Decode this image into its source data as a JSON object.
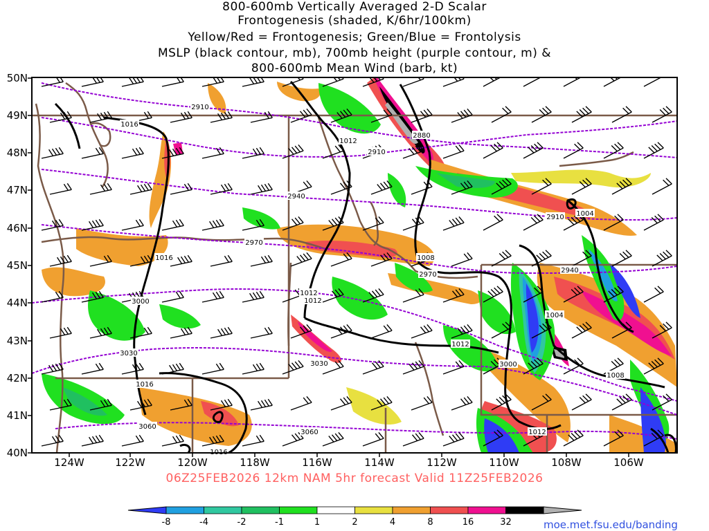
{
  "title": {
    "lines": [
      "800-600mb Vertically Averaged 2-D Scalar",
      "Frontogenesis (shaded, K/6hr/100km)",
      "Yellow/Red = Frontogenesis;  Green/Blue = Frontolysis",
      "MSLP (black contour, mb), 700mb height (purple contour, m) &",
      "800-600mb Mean Wind (barb, kt)"
    ]
  },
  "axes": {
    "lat_labels": [
      "50N",
      "49N",
      "48N",
      "47N",
      "46N",
      "45N",
      "44N",
      "43N",
      "42N",
      "41N",
      "40N"
    ],
    "lon_labels": [
      "124W",
      "122W",
      "120W",
      "118W",
      "116W",
      "114W",
      "112W",
      "110W",
      "108W",
      "106W"
    ]
  },
  "valid_text": "06Z25FEB2026 12km NAM 5hr forecast Valid 11Z25FEB2026",
  "credit": "moe.met.fsu.edu/banding",
  "colorbar": {
    "labels": [
      "-8",
      "-4",
      "-2",
      "-1",
      "1",
      "2",
      "4",
      "8",
      "16",
      "32"
    ],
    "colors": [
      "#2f3cf5",
      "#20a0e0",
      "#30c8a0",
      "#20c060",
      "#20e020",
      "#ffffff",
      "#e8e040",
      "#f0a030",
      "#f05050",
      "#f01090",
      "#000000",
      "#b0b0b0"
    ]
  },
  "contours": {
    "mslp_labels": [
      "1016",
      "1012",
      "1008",
      "1004",
      "1012",
      "1012",
      "1012",
      "1016",
      "1016",
      "1016",
      "1004",
      "1008",
      "1012"
    ],
    "height_labels": [
      "2910",
      "2880",
      "2910",
      "2940",
      "2910",
      "2970",
      "2940",
      "2970",
      "3000",
      "3030",
      "3000",
      "3030",
      "3060",
      "3060"
    ]
  },
  "colors": {
    "mslp": "#000000",
    "height": "#9400d3",
    "borders": "#7a5a48"
  }
}
